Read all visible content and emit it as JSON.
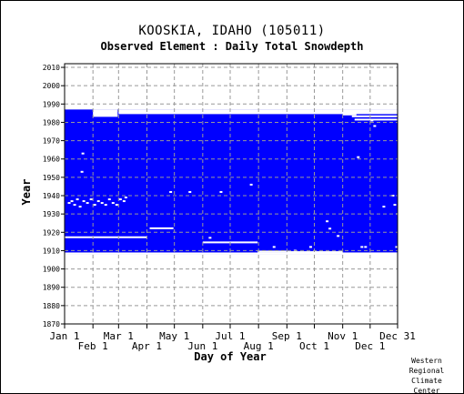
{
  "header": {
    "title": "KOOSKIA, IDAHO   (105011)",
    "subtitle": "Observed Element : Daily Total Snowdepth"
  },
  "credit": [
    "Western",
    "Regional",
    "Climate",
    "Center"
  ],
  "chart_data": {
    "type": "heatmap",
    "xlabel": "Day of Year",
    "ylabel": "Year",
    "xlim": [
      1,
      365
    ],
    "ylim": [
      1870,
      2012
    ],
    "grid": true,
    "x_ticks_upper": [
      {
        "day": 1,
        "label": "Jan 1"
      },
      {
        "day": 60,
        "label": "Mar 1"
      },
      {
        "day": 121,
        "label": "May 1"
      },
      {
        "day": 182,
        "label": "Jul 1"
      },
      {
        "day": 244,
        "label": "Sep 1"
      },
      {
        "day": 305,
        "label": "Nov 1"
      },
      {
        "day": 365,
        "label": "Dec 31"
      }
    ],
    "x_ticks_lower": [
      {
        "day": 32,
        "label": "Feb 1"
      },
      {
        "day": 91,
        "label": "Apr 1"
      },
      {
        "day": 152,
        "label": "Jun 1"
      },
      {
        "day": 213,
        "label": "Aug 1"
      },
      {
        "day": 274,
        "label": "Oct 1"
      },
      {
        "day": 335,
        "label": "Dec 1"
      }
    ],
    "y_ticks": [
      1870,
      1880,
      1890,
      1900,
      1910,
      1920,
      1930,
      1940,
      1950,
      1960,
      1970,
      1980,
      1990,
      2000,
      2010
    ],
    "data_color": "#0000ff",
    "data_description": "Daily snowdepth records present (blue) for roughly years 1908 through 1986",
    "record_blocks": [
      {
        "day_start": 1,
        "day_end": 365,
        "year_start": 1908,
        "year_end": 1986
      }
    ],
    "missing_blocks": [
      {
        "day_start": 32,
        "day_end": 59,
        "year_start": 1983,
        "year_end": 1986
      },
      {
        "day_start": 60,
        "day_end": 365,
        "year_start": 1984.5,
        "year_end": 1986
      },
      {
        "day_start": 121,
        "day_end": 152,
        "year_start": 1986,
        "year_end": 1986
      },
      {
        "day_start": 244,
        "day_end": 365,
        "year_start": 1986,
        "year_end": 1986
      },
      {
        "day_start": 1,
        "day_end": 365,
        "year_start": 1908,
        "year_end": 1908
      },
      {
        "day_start": 335,
        "day_end": 365,
        "year_start": 1907,
        "year_end": 1908
      }
    ],
    "missing_lines": [
      {
        "day_start": 1,
        "day_end": 60,
        "year": 1917.3
      },
      {
        "day_start": 60,
        "day_end": 91,
        "year": 1917.3
      },
      {
        "day_start": 94,
        "day_end": 120,
        "year": 1922.2
      },
      {
        "day_start": 152,
        "day_end": 212,
        "year": 1914.5
      },
      {
        "day_start": 212,
        "day_end": 244,
        "year": 1909.5
      },
      {
        "day_start": 244,
        "day_end": 305,
        "year": 1909.2
      },
      {
        "day_start": 305,
        "day_end": 336,
        "year": 1908.3
      },
      {
        "day_start": 305,
        "day_end": 365,
        "year": 1985.2
      },
      {
        "day_start": 318,
        "day_end": 365,
        "year": 1981.5
      },
      {
        "day_start": 315,
        "day_end": 365,
        "year": 1983.3
      },
      {
        "day_start": 305,
        "day_end": 320,
        "year": 1984.3
      }
    ],
    "missing_dots": [
      {
        "day": 20,
        "year": 1953
      },
      {
        "day": 21,
        "year": 1963
      },
      {
        "day": 6,
        "year": 1936
      },
      {
        "day": 9,
        "year": 1937
      },
      {
        "day": 12,
        "year": 1935
      },
      {
        "day": 15,
        "year": 1938
      },
      {
        "day": 18,
        "year": 1934
      },
      {
        "day": 22,
        "year": 1937
      },
      {
        "day": 26,
        "year": 1936
      },
      {
        "day": 30,
        "year": 1938
      },
      {
        "day": 34,
        "year": 1935
      },
      {
        "day": 38,
        "year": 1937
      },
      {
        "day": 42,
        "year": 1936
      },
      {
        "day": 46,
        "year": 1935
      },
      {
        "day": 50,
        "year": 1938
      },
      {
        "day": 54,
        "year": 1936
      },
      {
        "day": 58,
        "year": 1935
      },
      {
        "day": 62,
        "year": 1938
      },
      {
        "day": 68,
        "year": 1939
      },
      {
        "day": 66,
        "year": 1937
      },
      {
        "day": 117,
        "year": 1942
      },
      {
        "day": 138,
        "year": 1942
      },
      {
        "day": 172,
        "year": 1942
      },
      {
        "day": 160,
        "year": 1917
      },
      {
        "day": 205,
        "year": 1946
      },
      {
        "day": 230,
        "year": 1912
      },
      {
        "day": 253,
        "year": 1910
      },
      {
        "day": 270,
        "year": 1912
      },
      {
        "day": 288,
        "year": 1926
      },
      {
        "day": 291,
        "year": 1922
      },
      {
        "day": 300,
        "year": 1918
      },
      {
        "day": 322,
        "year": 1961
      },
      {
        "day": 326,
        "year": 1912
      },
      {
        "day": 330,
        "year": 1912
      },
      {
        "day": 337,
        "year": 1981
      },
      {
        "day": 340,
        "year": 1978
      },
      {
        "day": 350,
        "year": 1934
      },
      {
        "day": 360,
        "year": 1940
      },
      {
        "day": 362,
        "year": 1935
      },
      {
        "day": 364,
        "year": 1912
      },
      {
        "day": 365,
        "year": 1930
      }
    ]
  }
}
